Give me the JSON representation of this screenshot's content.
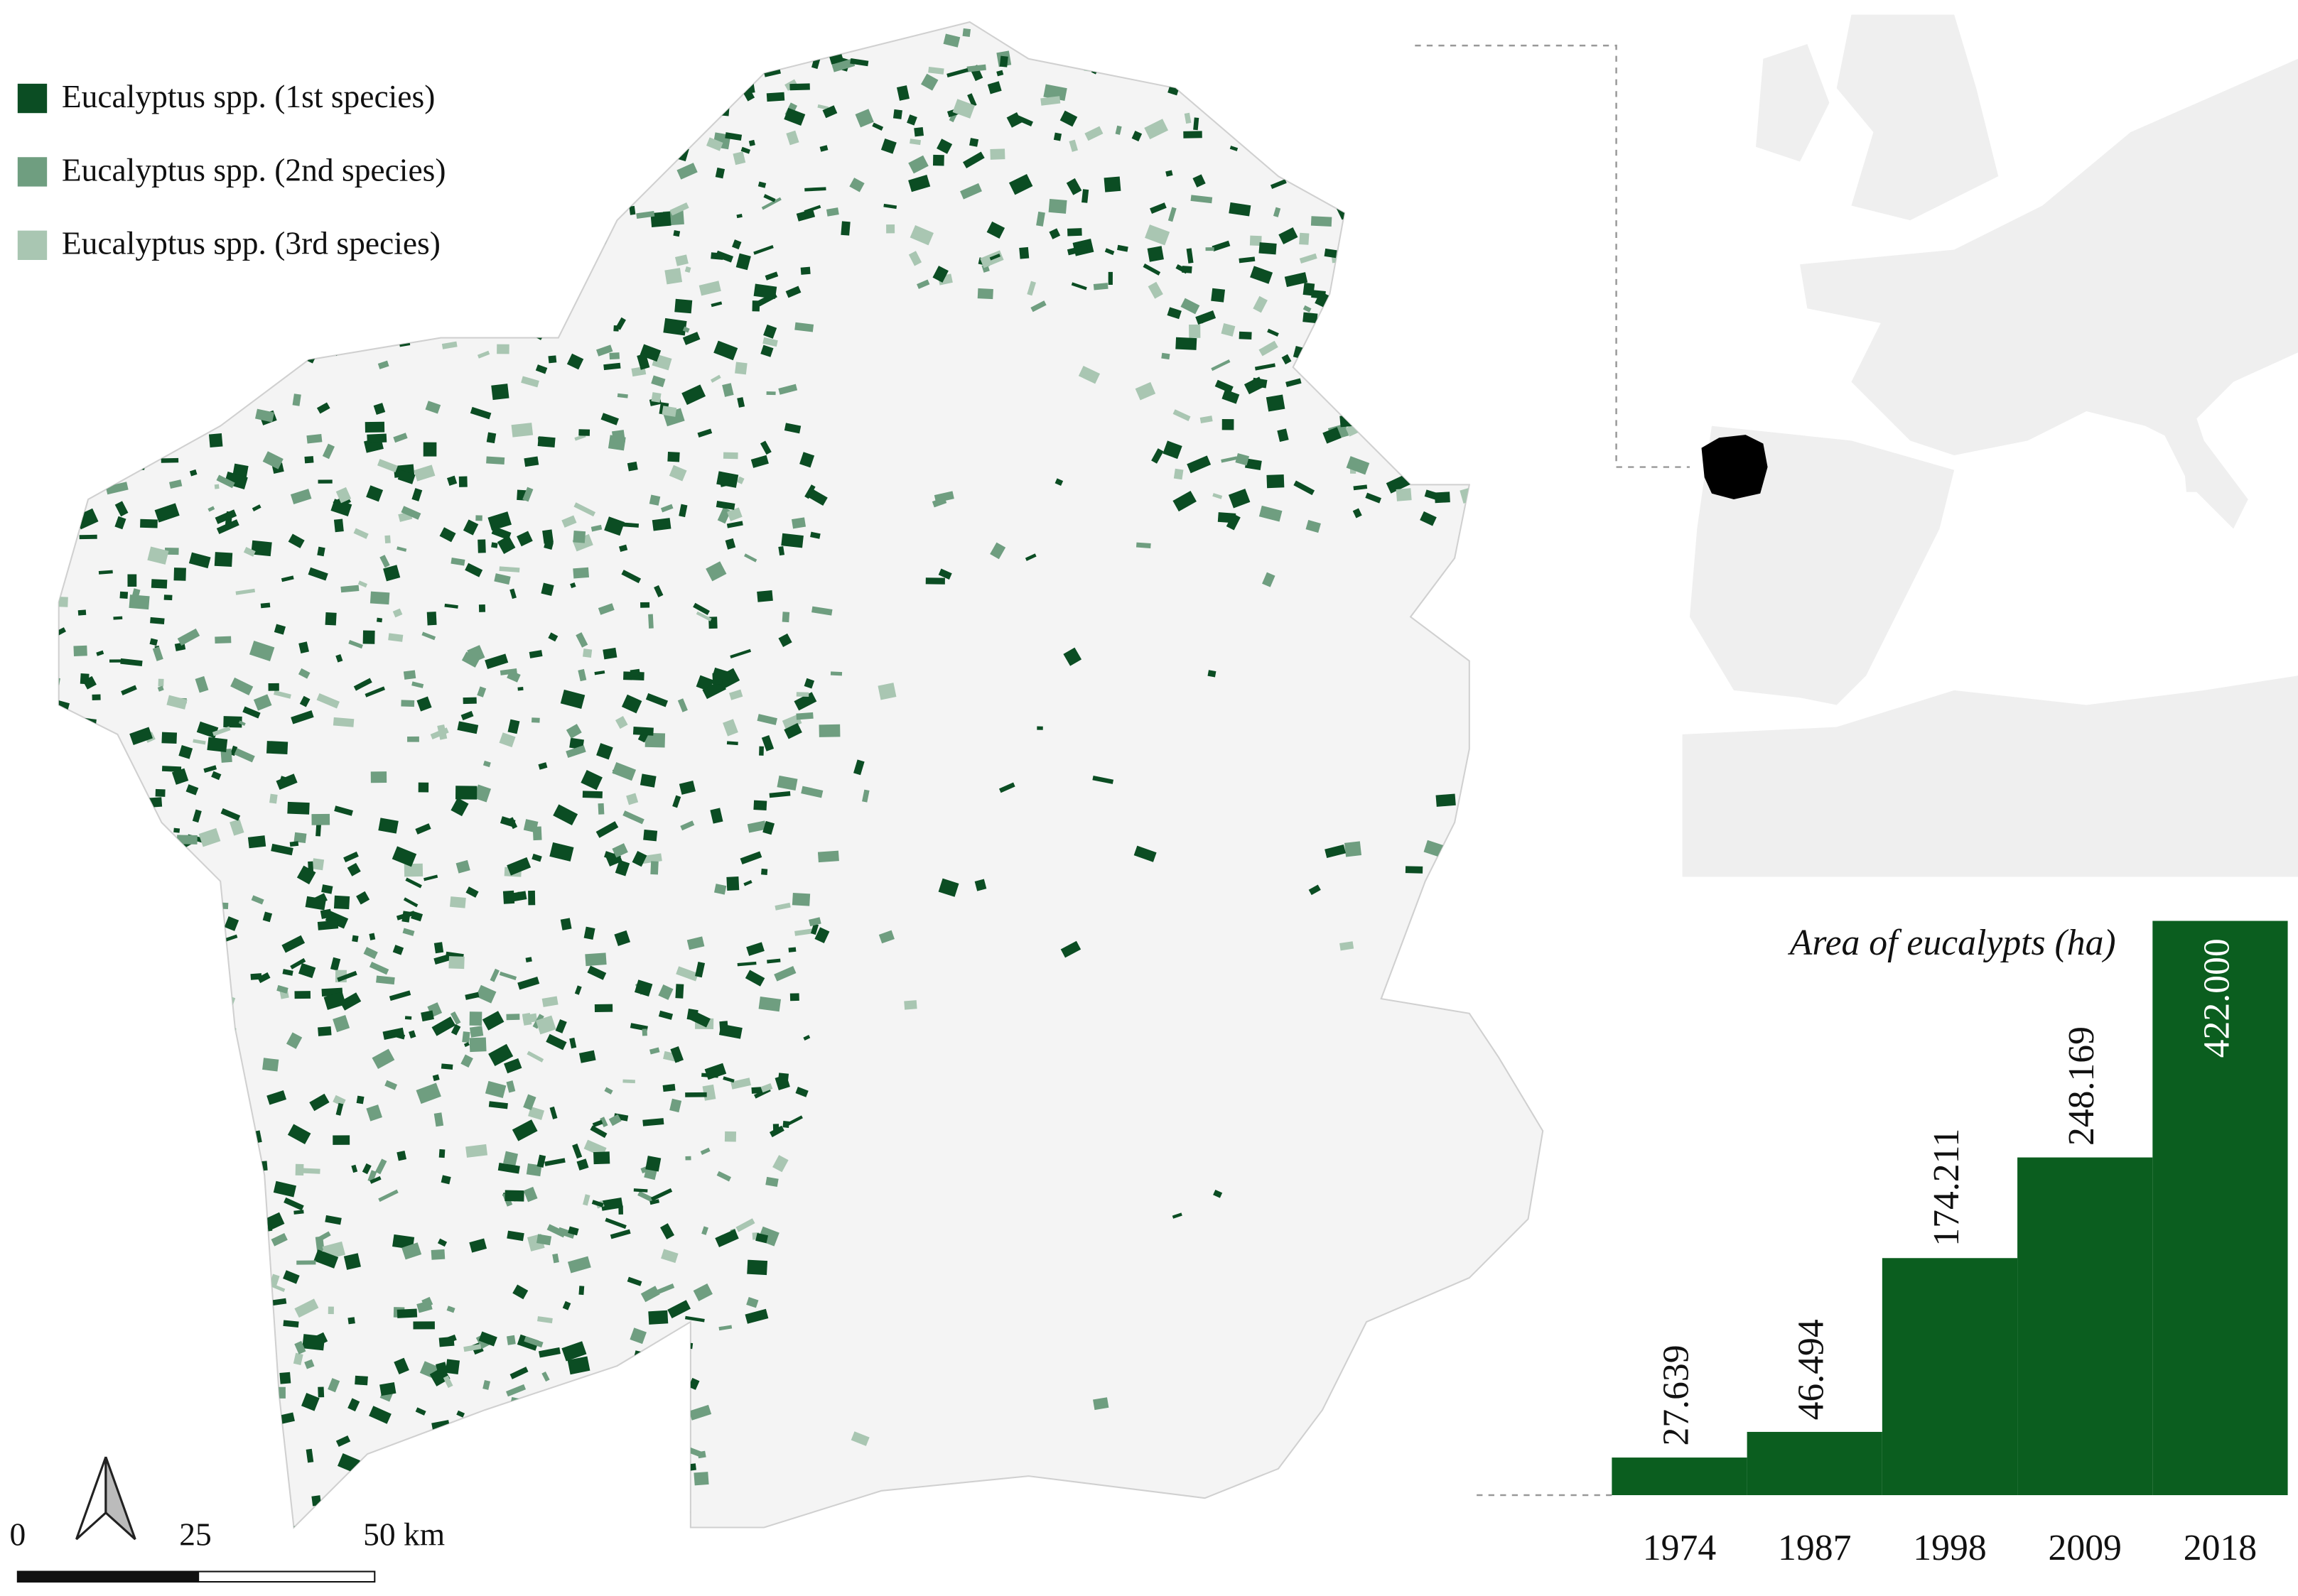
{
  "legend": {
    "items": [
      {
        "label": "Eucalyptus spp.  (1st species)",
        "color": "#0b4d23"
      },
      {
        "label": "Eucalyptus spp.  (2nd species)",
        "color": "#6f9e80"
      },
      {
        "label": "Eucalyptus spp.  (3rd species)",
        "color": "#a9c6b2"
      }
    ]
  },
  "scale_bar": {
    "labels": [
      "0",
      "25",
      "50 km"
    ]
  },
  "chart_data": {
    "type": "bar",
    "title": "Area of eucalypts (ha)",
    "categories": [
      "1974",
      "1987",
      "1998",
      "2009",
      "2018"
    ],
    "values": [
      27639,
      46494,
      174211,
      248169,
      422000
    ],
    "value_labels": [
      "27.639",
      "46.494",
      "174.211",
      "248.169",
      "422.000"
    ],
    "color": "#0b5e1f"
  }
}
